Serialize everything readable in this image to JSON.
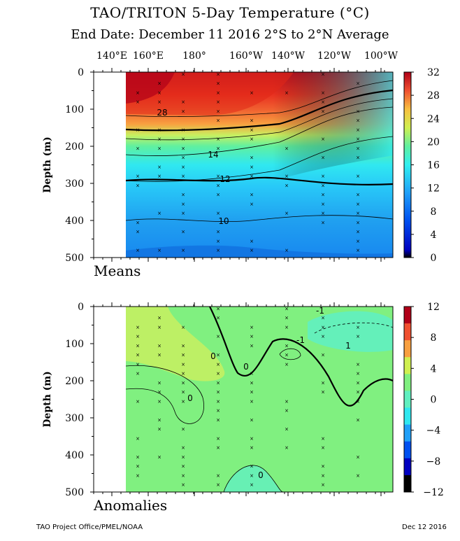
{
  "title": "TAO/TRITON 5-Day Temperature (°C)",
  "subtitle": "End Date: December 11 2016  2°S to 2°N Average",
  "longitude_labels": [
    "140°E",
    "160°E",
    "180°",
    "160°W",
    "140°W",
    "120°W",
    "100°W"
  ],
  "footer_left": "TAO Project Office/PMEL/NOAA",
  "footer_right": "Dec 12 2016",
  "chart_data": [
    {
      "type": "heatmap",
      "panel_label": "Means",
      "ylabel": "Depth (m)",
      "y_ticks": [
        "0",
        "100",
        "200",
        "300",
        "400",
        "500"
      ],
      "ylim": [
        500,
        0
      ],
      "colorbar_ticks": [
        "32",
        "28",
        "24",
        "20",
        "16",
        "12",
        "8",
        "4",
        "0"
      ],
      "colorbar_range": [
        0,
        32
      ],
      "contour_labels": [
        "28",
        "14",
        "12",
        "10"
      ],
      "colors": {
        "hot": "#c8141e",
        "warm": "#f05a28",
        "mid": "#fde74c",
        "cool": "#3ef0f0",
        "cold": "#2090f0"
      }
    },
    {
      "type": "heatmap",
      "panel_label": "Anomalies",
      "ylabel": "Depth (m)",
      "y_ticks": [
        "0",
        "100",
        "200",
        "300",
        "400",
        "500"
      ],
      "ylim": [
        500,
        0
      ],
      "colorbar_ticks": [
        "12",
        "8",
        "4",
        "0",
        "−4",
        "−8",
        "−12"
      ],
      "colorbar_range": [
        -12,
        12
      ],
      "contour_labels": [
        "0",
        "-1",
        "1",
        "0",
        "0",
        "-1",
        "0"
      ],
      "colors": {
        "neutral": "#80f080",
        "positive": "#c8f060",
        "negative": "#60f0c0"
      }
    }
  ]
}
